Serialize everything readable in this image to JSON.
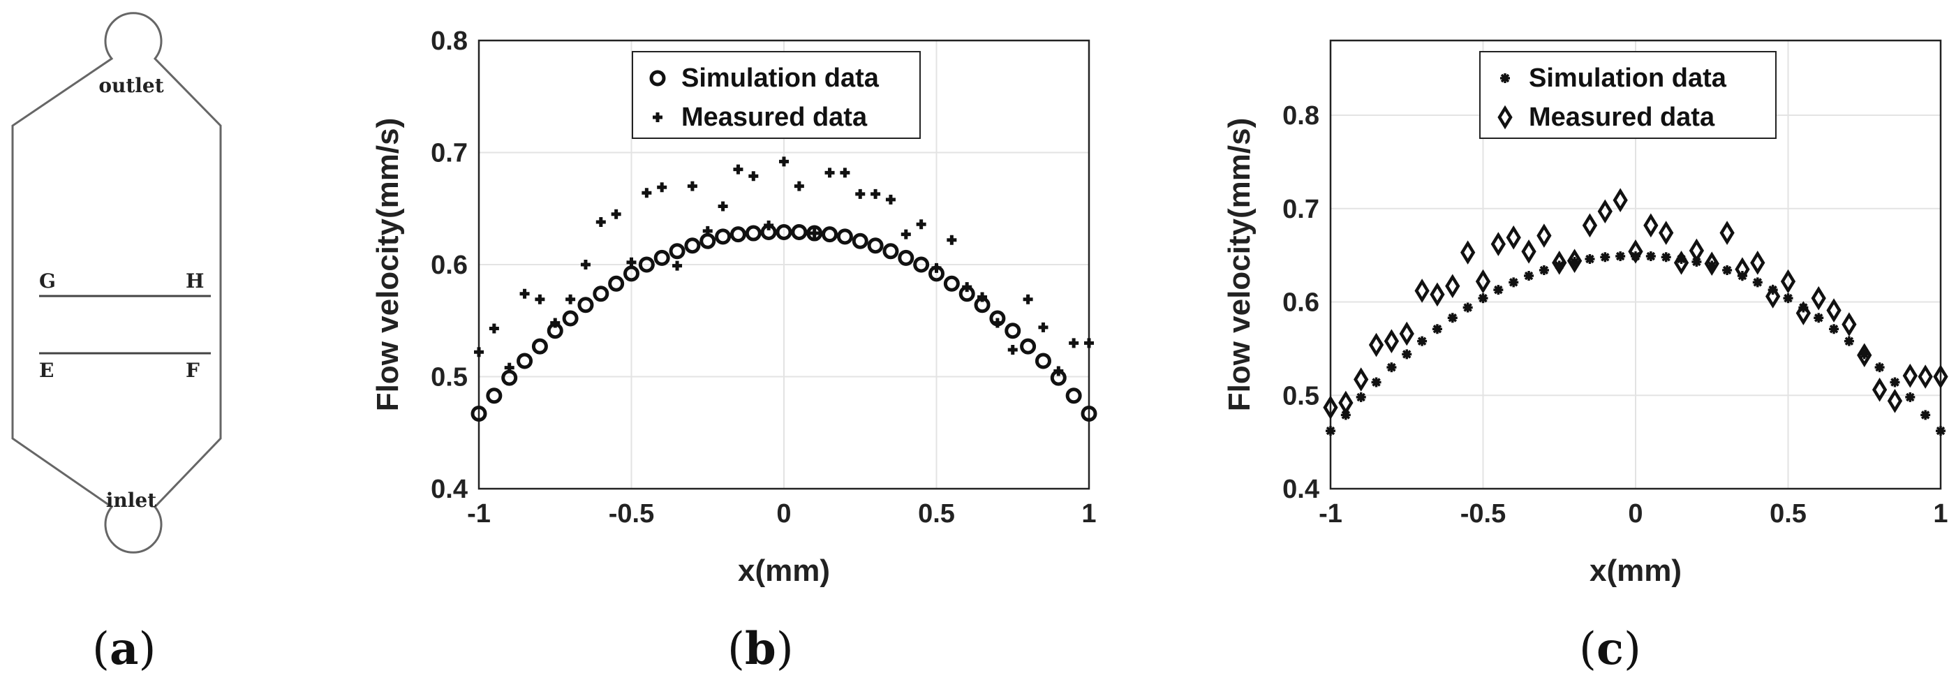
{
  "panel_a": {
    "label": "a",
    "outlet": "outlet",
    "inlet": "inlet",
    "line_gh_left": "G",
    "line_gh_right": "H",
    "line_ef_left": "E",
    "line_ef_right": "F"
  },
  "chart_data": [
    {
      "panel": "b",
      "label": "b",
      "type": "scatter",
      "xlabel": "x(mm)",
      "ylabel": "Flow velocity(mm/s)",
      "xlim": [
        -1,
        1
      ],
      "ylim": [
        0.4,
        0.8
      ],
      "xticks": [
        -1,
        -0.5,
        0,
        0.5,
        1
      ],
      "xtick_labels": [
        "-1",
        "-0.5",
        "0",
        "0.5",
        "1"
      ],
      "yticks": [
        0.4,
        0.5,
        0.6,
        0.7,
        0.8
      ],
      "ytick_labels": [
        "0.4",
        "0.5",
        "0.6",
        "0.7",
        "0.8"
      ],
      "grid": true,
      "legend_position": "top-center",
      "series": [
        {
          "name": "Simulation data",
          "marker": "circle",
          "x": [
            -1.0,
            -0.95,
            -0.9,
            -0.85,
            -0.8,
            -0.75,
            -0.7,
            -0.65,
            -0.6,
            -0.55,
            -0.5,
            -0.45,
            -0.4,
            -0.35,
            -0.3,
            -0.25,
            -0.2,
            -0.15,
            -0.1,
            -0.05,
            0.0,
            0.05,
            0.1,
            0.15,
            0.2,
            0.25,
            0.3,
            0.35,
            0.4,
            0.45,
            0.5,
            0.55,
            0.6,
            0.65,
            0.7,
            0.75,
            0.8,
            0.85,
            0.9,
            0.95,
            1.0
          ],
          "y": [
            0.467,
            0.483,
            0.499,
            0.514,
            0.527,
            0.541,
            0.552,
            0.564,
            0.574,
            0.583,
            0.592,
            0.6,
            0.606,
            0.612,
            0.617,
            0.621,
            0.625,
            0.627,
            0.628,
            0.629,
            0.629,
            0.629,
            0.628,
            0.627,
            0.625,
            0.621,
            0.617,
            0.612,
            0.606,
            0.6,
            0.592,
            0.583,
            0.574,
            0.564,
            0.552,
            0.541,
            0.527,
            0.514,
            0.499,
            0.483,
            0.467
          ]
        },
        {
          "name": "Measured data",
          "marker": "plus",
          "x": [
            -1.0,
            -0.95,
            -0.9,
            -0.85,
            -0.8,
            -0.75,
            -0.7,
            -0.65,
            -0.6,
            -0.55,
            -0.5,
            -0.45,
            -0.4,
            -0.35,
            -0.3,
            -0.25,
            -0.2,
            -0.15,
            -0.1,
            -0.05,
            0.0,
            0.05,
            0.1,
            0.15,
            0.2,
            0.25,
            0.3,
            0.35,
            0.4,
            0.45,
            0.5,
            0.55,
            0.6,
            0.65,
            0.7,
            0.75,
            0.8,
            0.85,
            0.9,
            0.95,
            1.0
          ],
          "y": [
            0.522,
            0.543,
            0.508,
            0.574,
            0.569,
            0.548,
            0.569,
            0.6,
            0.638,
            0.645,
            0.602,
            0.664,
            0.669,
            0.599,
            0.67,
            0.63,
            0.652,
            0.685,
            0.679,
            0.635,
            0.692,
            0.67,
            0.628,
            0.682,
            0.682,
            0.663,
            0.663,
            0.658,
            0.627,
            0.636,
            0.597,
            0.622,
            0.58,
            0.571,
            0.548,
            0.524,
            0.569,
            0.544,
            0.505,
            0.53,
            0.53
          ]
        }
      ]
    },
    {
      "panel": "c",
      "label": "c",
      "type": "scatter",
      "xlabel": "x(mm)",
      "ylabel": "Flow velocity(mm/s)",
      "xlim": [
        -1,
        1
      ],
      "ylim": [
        0.4,
        0.88
      ],
      "xticks": [
        -1,
        -0.5,
        0,
        0.5,
        1
      ],
      "xtick_labels": [
        "-1",
        "-0.5",
        "0",
        "0.5",
        "1"
      ],
      "yticks": [
        0.4,
        0.5,
        0.6,
        0.7,
        0.8
      ],
      "ytick_labels": [
        "0.4",
        "0.5",
        "0.6",
        "0.7",
        "0.8"
      ],
      "grid": true,
      "legend_position": "top-center",
      "series": [
        {
          "name": "Simulation data",
          "marker": "asterisk",
          "x": [
            -1.0,
            -0.95,
            -0.9,
            -0.85,
            -0.8,
            -0.75,
            -0.7,
            -0.65,
            -0.6,
            -0.55,
            -0.5,
            -0.45,
            -0.4,
            -0.35,
            -0.3,
            -0.25,
            -0.2,
            -0.15,
            -0.1,
            -0.05,
            0.0,
            0.05,
            0.1,
            0.15,
            0.2,
            0.25,
            0.3,
            0.35,
            0.4,
            0.45,
            0.5,
            0.55,
            0.6,
            0.65,
            0.7,
            0.75,
            0.8,
            0.85,
            0.9,
            0.95,
            1.0
          ],
          "y": [
            0.462,
            0.479,
            0.498,
            0.514,
            0.53,
            0.544,
            0.558,
            0.571,
            0.583,
            0.594,
            0.604,
            0.613,
            0.621,
            0.628,
            0.634,
            0.639,
            0.643,
            0.646,
            0.648,
            0.649,
            0.649,
            0.649,
            0.648,
            0.646,
            0.643,
            0.639,
            0.634,
            0.628,
            0.621,
            0.613,
            0.604,
            0.594,
            0.583,
            0.571,
            0.558,
            0.544,
            0.53,
            0.514,
            0.498,
            0.479,
            0.462
          ]
        },
        {
          "name": "Measured data",
          "marker": "diamond",
          "x": [
            -1.0,
            -0.95,
            -0.9,
            -0.85,
            -0.8,
            -0.75,
            -0.7,
            -0.65,
            -0.6,
            -0.55,
            -0.5,
            -0.45,
            -0.4,
            -0.35,
            -0.3,
            -0.25,
            -0.2,
            -0.15,
            -0.1,
            -0.05,
            0.0,
            0.05,
            0.1,
            0.15,
            0.2,
            0.25,
            0.3,
            0.35,
            0.4,
            0.45,
            0.5,
            0.55,
            0.6,
            0.65,
            0.7,
            0.75,
            0.8,
            0.85,
            0.9,
            0.95,
            1.0
          ],
          "y": [
            0.487,
            0.492,
            0.517,
            0.554,
            0.558,
            0.566,
            0.612,
            0.608,
            0.617,
            0.653,
            0.622,
            0.662,
            0.669,
            0.654,
            0.671,
            0.642,
            0.644,
            0.682,
            0.697,
            0.709,
            0.654,
            0.682,
            0.674,
            0.642,
            0.655,
            0.641,
            0.674,
            0.635,
            0.642,
            0.606,
            0.622,
            0.588,
            0.604,
            0.591,
            0.576,
            0.543,
            0.506,
            0.494,
            0.521,
            0.52,
            0.52
          ]
        }
      ]
    }
  ]
}
